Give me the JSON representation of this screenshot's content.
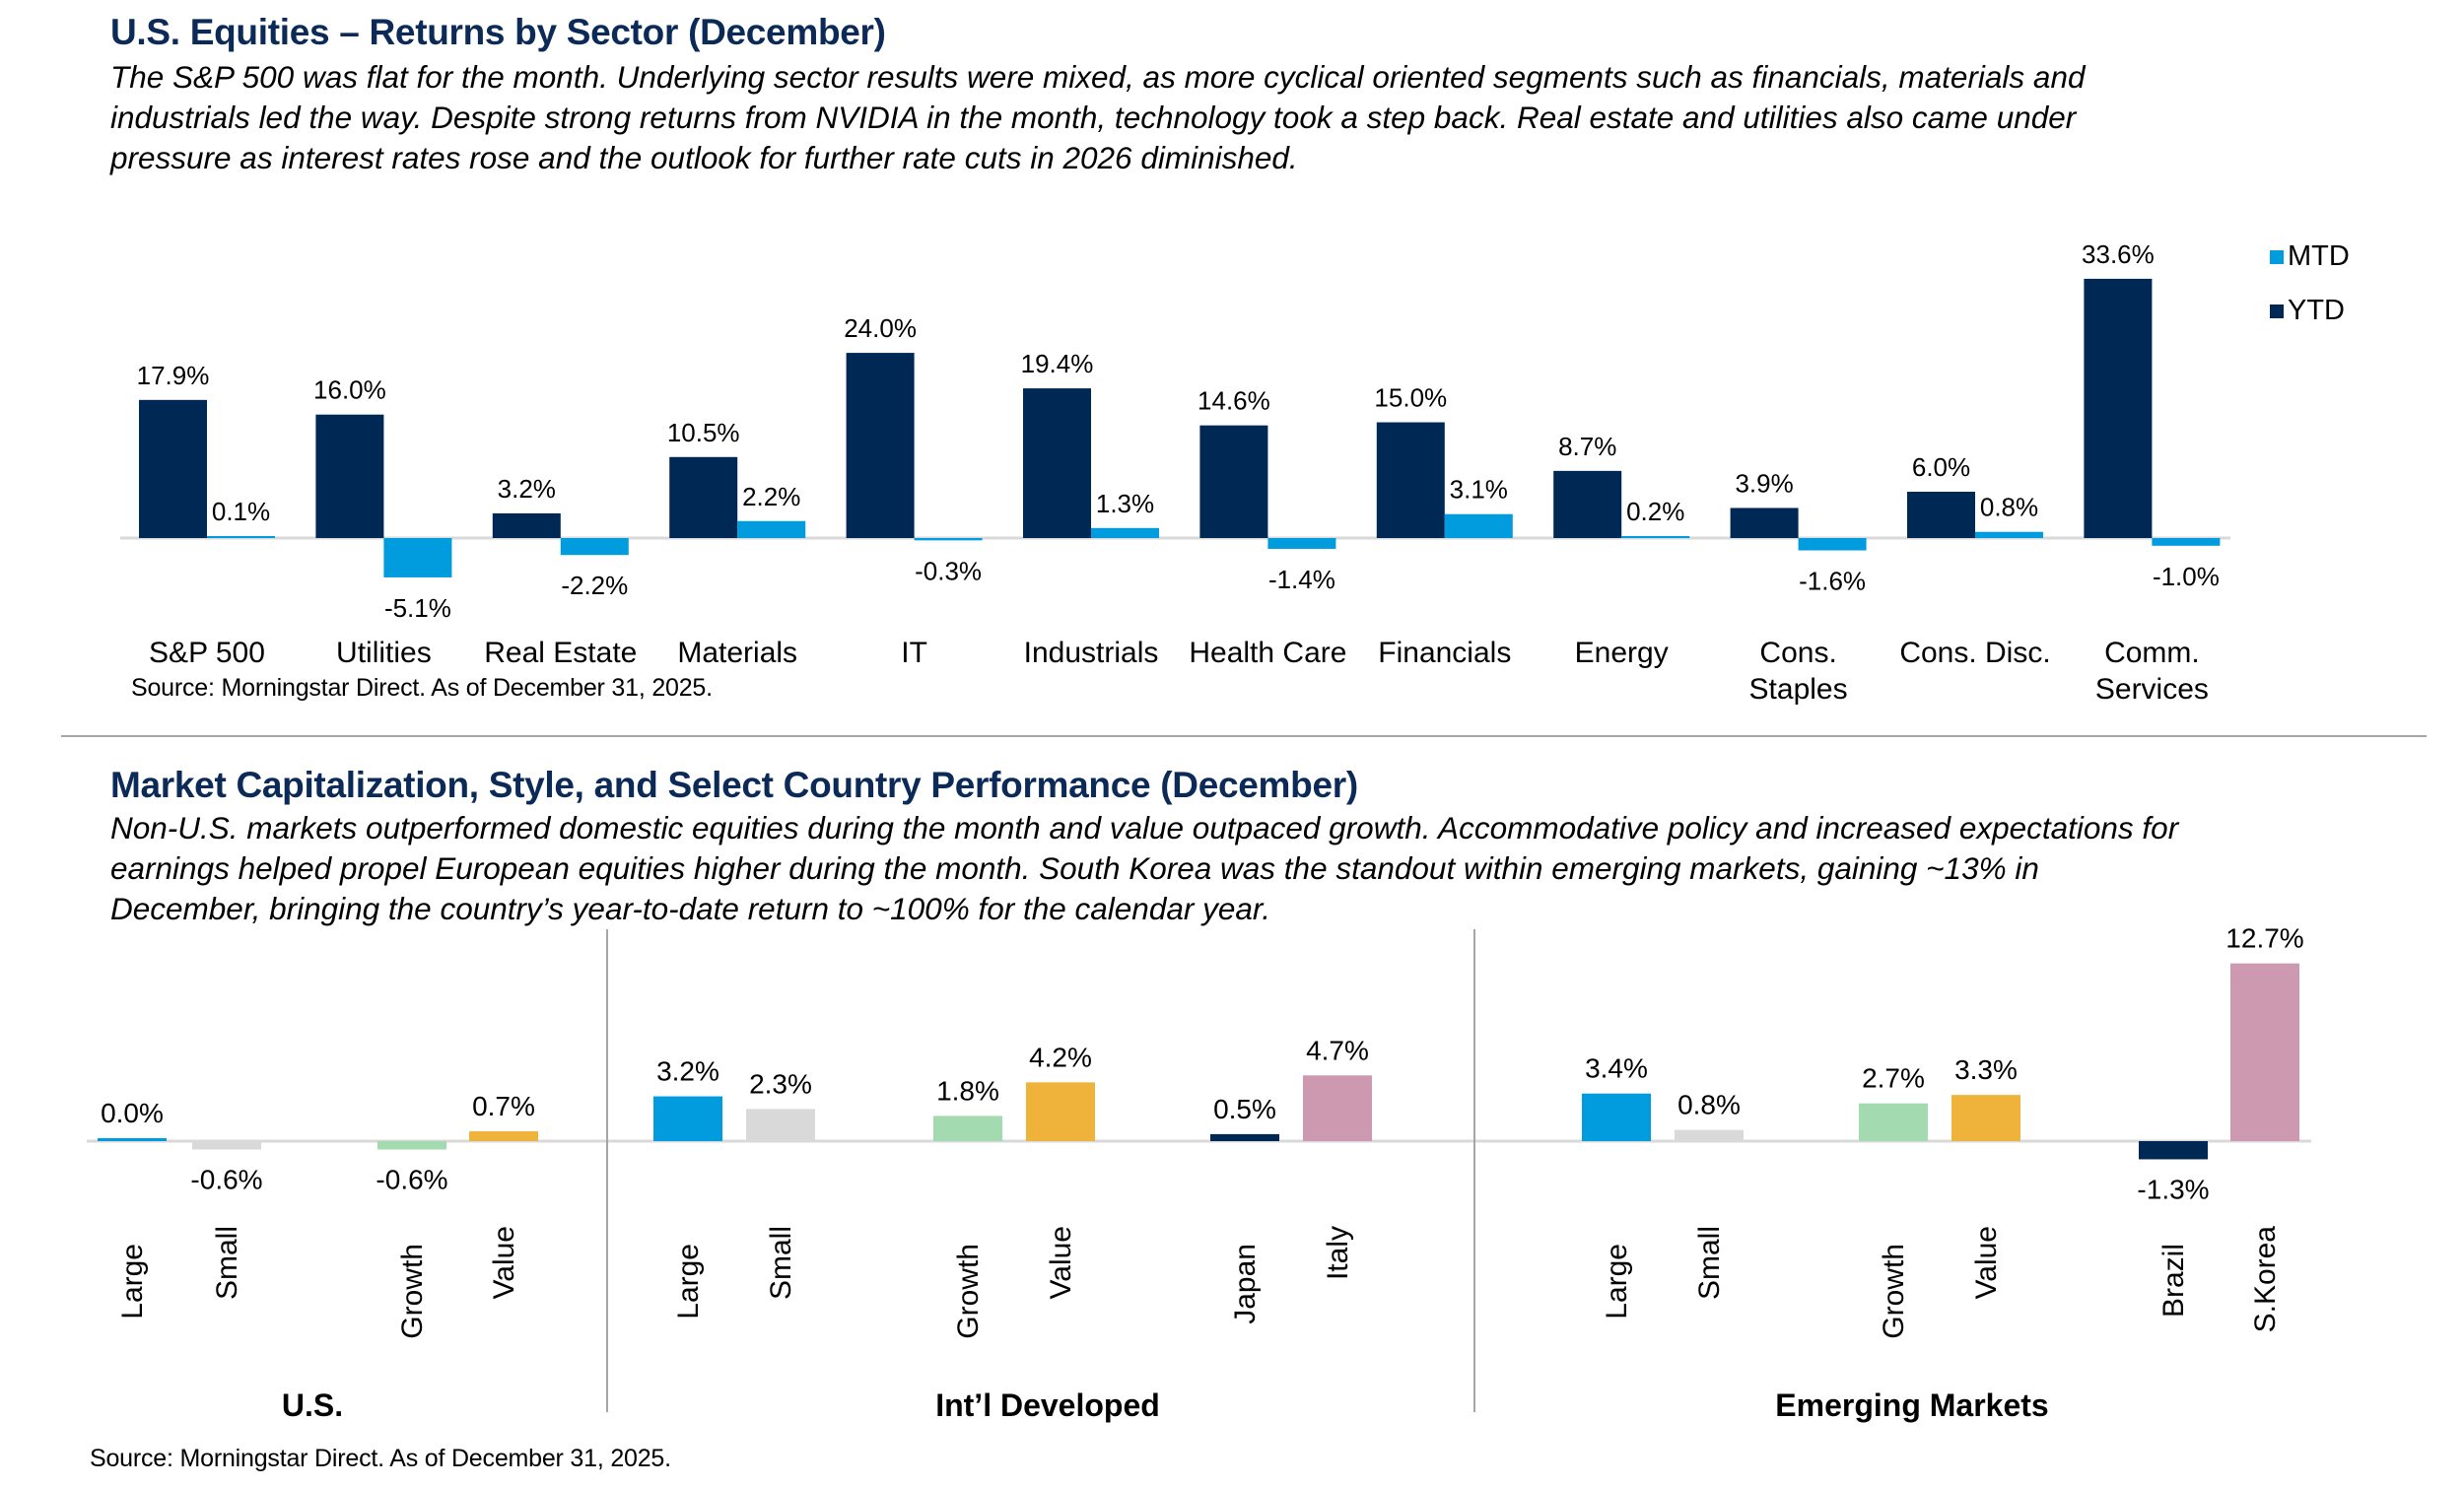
{
  "section1": {
    "title": "U.S. Equities – Returns by Sector (December)",
    "paragraph": "The S&P 500 was flat for the month. Underlying sector results were mixed, as more cyclical oriented segments such as financials, materials and\nindustrials led the way. Despite strong returns from NVIDIA in the month, technology took a step back. Real estate and utilities also came under\npressure as interest rates rose and the outlook for further rate cuts in 2026 diminished.",
    "source": "Source: Morningstar Direct. As of December 31, 2025."
  },
  "section2": {
    "title": "Market Capitalization, Style, and Select Country Performance (December)",
    "paragraph": "Non-U.S. markets outperformed domestic equities during the month and value outpaced growth. Accommodative policy and increased expectations for\nearnings helped propel European equities higher during the month. South Korea was the standout within emerging markets, gaining ~13% in\nDecember, bringing the country’s year-to-date return to ~100% for the calendar year.",
    "source": "Source: Morningstar Direct. As of December 31, 2025."
  },
  "chart_data": [
    {
      "type": "bar",
      "title": "U.S. Equities – Returns by Sector (December)",
      "xlabel": "",
      "ylabel": "",
      "grid": false,
      "legend_position": "top-right",
      "categories": [
        "S&P 500",
        "Utilities",
        "Real Estate",
        "Materials",
        "IT",
        "Industrials",
        "Health Care",
        "Financials",
        "Energy",
        "Cons.\nStaples",
        "Cons. Disc.",
        "Comm.\nServices"
      ],
      "series": [
        {
          "name": "YTD",
          "color": "#002855",
          "values": [
            17.9,
            16.0,
            3.2,
            10.5,
            24.0,
            19.4,
            14.6,
            15.0,
            8.7,
            3.9,
            6.0,
            33.6
          ]
        },
        {
          "name": "MTD",
          "color": "#009cde",
          "values": [
            0.1,
            -5.1,
            -2.2,
            2.2,
            -0.3,
            1.3,
            -1.4,
            3.1,
            0.2,
            -1.6,
            0.8,
            -1.0
          ]
        }
      ],
      "legend": [
        {
          "name": "MTD",
          "color": "#009cde"
        },
        {
          "name": "YTD",
          "color": "#002855"
        }
      ],
      "value_suffix": "%",
      "ylim": [
        -6,
        35
      ]
    },
    {
      "type": "bar",
      "title": "Market Capitalization, Style, and Select Country Performance (December)",
      "xlabel": "",
      "ylabel": "",
      "grid": false,
      "groups": [
        {
          "name": "U.S.",
          "bars": [
            {
              "label": "Large",
              "value": 0.0,
              "color": "#009cde"
            },
            {
              "label": "Small",
              "value": -0.6,
              "color": "#d9d9d9"
            },
            {
              "label": "Growth",
              "value": -0.6,
              "color": "#a3dab0"
            },
            {
              "label": "Value",
              "value": 0.7,
              "color": "#efb33c"
            }
          ]
        },
        {
          "name": "Int’l Developed",
          "bars": [
            {
              "label": "Large",
              "value": 3.2,
              "color": "#009cde"
            },
            {
              "label": "Small",
              "value": 2.3,
              "color": "#d9d9d9"
            },
            {
              "label": "Growth",
              "value": 1.8,
              "color": "#a3dab0"
            },
            {
              "label": "Value",
              "value": 4.2,
              "color": "#efb33c"
            },
            {
              "label": "Japan",
              "value": 0.5,
              "color": "#002855"
            },
            {
              "label": "Italy",
              "value": 4.7,
              "color": "#cc99b0"
            }
          ]
        },
        {
          "name": "Emerging Markets",
          "bars": [
            {
              "label": "Large",
              "value": 3.4,
              "color": "#009cde"
            },
            {
              "label": "Small",
              "value": 0.8,
              "color": "#d9d9d9"
            },
            {
              "label": "Growth",
              "value": 2.7,
              "color": "#a3dab0"
            },
            {
              "label": "Value",
              "value": 3.3,
              "color": "#efb33c"
            },
            {
              "label": "Brazil",
              "value": -1.3,
              "color": "#002855"
            },
            {
              "label": "S.Korea",
              "value": 12.7,
              "color": "#cc99b0"
            }
          ]
        }
      ],
      "value_suffix": "%",
      "ylim": [
        -2,
        13
      ]
    }
  ]
}
